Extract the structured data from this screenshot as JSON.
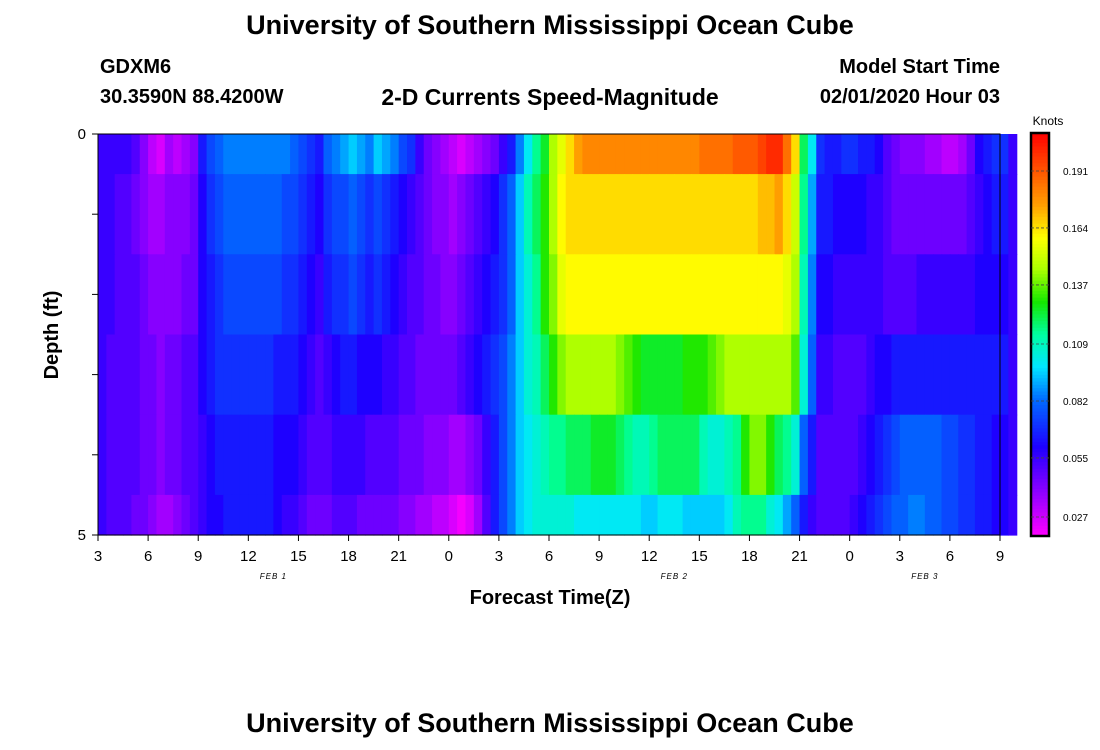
{
  "header": {
    "title": "University of Southern Mississippi Ocean Cube",
    "station_id": "GDXM6",
    "coordinates": "30.3590N 88.4200W",
    "subtitle": "2-D Currents Speed-Magnitude",
    "model_label": "Model Start Time",
    "model_time": "02/01/2020 Hour 03"
  },
  "footer": {
    "title": "University of Southern Mississippi Ocean Cube"
  },
  "chart_data": {
    "type": "heatmap",
    "xlabel": "Forecast Time(Z)",
    "ylabel": "Depth (ft)",
    "x_tick_labels": [
      "3",
      "6",
      "9",
      "12",
      "15",
      "18",
      "21",
      "0",
      "3",
      "6",
      "9",
      "12",
      "15",
      "18",
      "21",
      "0",
      "3",
      "6",
      "9"
    ],
    "x_hours": [
      0,
      54
    ],
    "y_tick_labels": [
      "0",
      "5"
    ],
    "ylim": [
      0,
      5
    ],
    "date_labels": [
      {
        "text": "FEB 1",
        "hour": 10.5
      },
      {
        "text": "FEB 2",
        "hour": 34.5
      },
      {
        "text": "FEB 3",
        "hour": 49.5
      }
    ],
    "colorbar": {
      "label": "Knots",
      "ticks": [
        0.191,
        0.164,
        0.137,
        0.109,
        0.082,
        0.055,
        0.027
      ],
      "range": [
        0.018,
        0.209
      ]
    },
    "depth_rows": 5,
    "hours_per_column": 0.5,
    "rows": [
      [
        0.055,
        0.055,
        0.055,
        0.055,
        0.05,
        0.04,
        0.03,
        0.025,
        0.035,
        0.03,
        0.035,
        0.04,
        0.065,
        0.075,
        0.08,
        0.085,
        0.085,
        0.085,
        0.085,
        0.085,
        0.085,
        0.085,
        0.085,
        0.08,
        0.075,
        0.07,
        0.065,
        0.08,
        0.085,
        0.09,
        0.095,
        0.09,
        0.085,
        0.095,
        0.09,
        0.085,
        0.075,
        0.07,
        0.055,
        0.045,
        0.04,
        0.035,
        0.03,
        0.025,
        0.03,
        0.035,
        0.04,
        0.045,
        0.055,
        0.065,
        0.085,
        0.1,
        0.115,
        0.125,
        0.145,
        0.155,
        0.165,
        0.175,
        0.18,
        0.18,
        0.18,
        0.18,
        0.18,
        0.18,
        0.18,
        0.18,
        0.18,
        0.18,
        0.18,
        0.18,
        0.18,
        0.18,
        0.185,
        0.185,
        0.185,
        0.185,
        0.19,
        0.19,
        0.19,
        0.195,
        0.2,
        0.2,
        0.185,
        0.165,
        0.12,
        0.1,
        0.07,
        0.065,
        0.065,
        0.07,
        0.07,
        0.065,
        0.065,
        0.06,
        0.05,
        0.045,
        0.04,
        0.04,
        0.04,
        0.035,
        0.035,
        0.03,
        0.03,
        0.035,
        0.045,
        0.06,
        0.065,
        0.07,
        0.07,
        0.055
      ],
      [
        0.055,
        0.055,
        0.05,
        0.05,
        0.045,
        0.04,
        0.035,
        0.035,
        0.04,
        0.04,
        0.04,
        0.045,
        0.06,
        0.07,
        0.075,
        0.08,
        0.08,
        0.08,
        0.08,
        0.08,
        0.08,
        0.08,
        0.075,
        0.075,
        0.07,
        0.065,
        0.06,
        0.07,
        0.075,
        0.075,
        0.08,
        0.075,
        0.07,
        0.075,
        0.07,
        0.065,
        0.06,
        0.055,
        0.05,
        0.045,
        0.04,
        0.04,
        0.035,
        0.04,
        0.045,
        0.05,
        0.055,
        0.06,
        0.07,
        0.08,
        0.095,
        0.11,
        0.12,
        0.13,
        0.145,
        0.16,
        0.165,
        0.165,
        0.165,
        0.165,
        0.165,
        0.165,
        0.165,
        0.165,
        0.165,
        0.165,
        0.165,
        0.165,
        0.165,
        0.165,
        0.165,
        0.165,
        0.165,
        0.165,
        0.165,
        0.165,
        0.165,
        0.165,
        0.165,
        0.17,
        0.17,
        0.175,
        0.165,
        0.15,
        0.115,
        0.09,
        0.065,
        0.065,
        0.06,
        0.06,
        0.06,
        0.06,
        0.055,
        0.055,
        0.05,
        0.045,
        0.045,
        0.045,
        0.045,
        0.045,
        0.045,
        0.045,
        0.045,
        0.045,
        0.05,
        0.055,
        0.06,
        0.065,
        0.065,
        0.055
      ],
      [
        0.055,
        0.055,
        0.05,
        0.05,
        0.05,
        0.045,
        0.04,
        0.04,
        0.04,
        0.04,
        0.045,
        0.045,
        0.06,
        0.065,
        0.07,
        0.075,
        0.075,
        0.075,
        0.075,
        0.075,
        0.075,
        0.075,
        0.07,
        0.07,
        0.065,
        0.06,
        0.055,
        0.065,
        0.07,
        0.07,
        0.075,
        0.07,
        0.065,
        0.07,
        0.065,
        0.06,
        0.055,
        0.05,
        0.05,
        0.045,
        0.045,
        0.04,
        0.04,
        0.045,
        0.05,
        0.055,
        0.06,
        0.065,
        0.07,
        0.08,
        0.095,
        0.105,
        0.115,
        0.13,
        0.14,
        0.155,
        0.16,
        0.16,
        0.16,
        0.16,
        0.16,
        0.16,
        0.16,
        0.16,
        0.16,
        0.16,
        0.16,
        0.16,
        0.16,
        0.16,
        0.16,
        0.16,
        0.16,
        0.16,
        0.16,
        0.16,
        0.16,
        0.16,
        0.16,
        0.16,
        0.16,
        0.16,
        0.155,
        0.145,
        0.11,
        0.085,
        0.06,
        0.06,
        0.055,
        0.055,
        0.055,
        0.055,
        0.055,
        0.055,
        0.05,
        0.05,
        0.05,
        0.05,
        0.055,
        0.055,
        0.055,
        0.055,
        0.055,
        0.055,
        0.055,
        0.06,
        0.06,
        0.06,
        0.06,
        0.055
      ],
      [
        0.055,
        0.05,
        0.05,
        0.05,
        0.05,
        0.045,
        0.045,
        0.04,
        0.045,
        0.045,
        0.05,
        0.05,
        0.06,
        0.065,
        0.07,
        0.07,
        0.07,
        0.07,
        0.07,
        0.07,
        0.07,
        0.065,
        0.065,
        0.065,
        0.06,
        0.055,
        0.05,
        0.055,
        0.06,
        0.065,
        0.065,
        0.06,
        0.06,
        0.06,
        0.055,
        0.055,
        0.05,
        0.05,
        0.045,
        0.045,
        0.045,
        0.045,
        0.045,
        0.05,
        0.055,
        0.06,
        0.065,
        0.07,
        0.075,
        0.085,
        0.095,
        0.105,
        0.11,
        0.12,
        0.13,
        0.14,
        0.145,
        0.145,
        0.145,
        0.145,
        0.145,
        0.145,
        0.14,
        0.135,
        0.13,
        0.125,
        0.125,
        0.125,
        0.125,
        0.125,
        0.13,
        0.13,
        0.13,
        0.135,
        0.14,
        0.145,
        0.145,
        0.145,
        0.145,
        0.145,
        0.145,
        0.145,
        0.145,
        0.135,
        0.105,
        0.08,
        0.055,
        0.055,
        0.05,
        0.05,
        0.05,
        0.05,
        0.055,
        0.06,
        0.06,
        0.065,
        0.065,
        0.065,
        0.065,
        0.065,
        0.065,
        0.065,
        0.065,
        0.065,
        0.065,
        0.065,
        0.065,
        0.065,
        0.065,
        0.055
      ],
      [
        0.055,
        0.05,
        0.05,
        0.05,
        0.05,
        0.045,
        0.045,
        0.04,
        0.045,
        0.045,
        0.05,
        0.05,
        0.055,
        0.06,
        0.065,
        0.065,
        0.065,
        0.065,
        0.065,
        0.065,
        0.065,
        0.06,
        0.06,
        0.06,
        0.055,
        0.05,
        0.05,
        0.05,
        0.055,
        0.055,
        0.055,
        0.055,
        0.05,
        0.05,
        0.05,
        0.05,
        0.045,
        0.045,
        0.045,
        0.04,
        0.04,
        0.04,
        0.035,
        0.035,
        0.04,
        0.045,
        0.055,
        0.065,
        0.075,
        0.085,
        0.095,
        0.1,
        0.105,
        0.11,
        0.115,
        0.115,
        0.12,
        0.12,
        0.12,
        0.125,
        0.125,
        0.125,
        0.12,
        0.115,
        0.11,
        0.11,
        0.115,
        0.12,
        0.12,
        0.12,
        0.12,
        0.12,
        0.11,
        0.105,
        0.105,
        0.11,
        0.115,
        0.13,
        0.14,
        0.14,
        0.13,
        0.12,
        0.115,
        0.105,
        0.08,
        0.065,
        0.05,
        0.05,
        0.05,
        0.05,
        0.05,
        0.055,
        0.06,
        0.065,
        0.07,
        0.075,
        0.08,
        0.08,
        0.08,
        0.08,
        0.08,
        0.075,
        0.075,
        0.07,
        0.07,
        0.065,
        0.065,
        0.06,
        0.06,
        0.055
      ],
      [
        0.055,
        0.05,
        0.05,
        0.05,
        0.045,
        0.045,
        0.04,
        0.035,
        0.035,
        0.04,
        0.045,
        0.05,
        0.055,
        0.06,
        0.06,
        0.065,
        0.065,
        0.065,
        0.065,
        0.065,
        0.065,
        0.06,
        0.055,
        0.055,
        0.05,
        0.045,
        0.045,
        0.045,
        0.05,
        0.05,
        0.05,
        0.045,
        0.045,
        0.045,
        0.045,
        0.045,
        0.04,
        0.04,
        0.035,
        0.035,
        0.03,
        0.03,
        0.025,
        0.02,
        0.025,
        0.035,
        0.05,
        0.065,
        0.075,
        0.085,
        0.095,
        0.1,
        0.105,
        0.105,
        0.105,
        0.105,
        0.105,
        0.1,
        0.1,
        0.1,
        0.1,
        0.1,
        0.1,
        0.1,
        0.1,
        0.095,
        0.095,
        0.1,
        0.1,
        0.1,
        0.095,
        0.095,
        0.095,
        0.095,
        0.095,
        0.1,
        0.11,
        0.115,
        0.115,
        0.115,
        0.105,
        0.1,
        0.09,
        0.08,
        0.065,
        0.055,
        0.05,
        0.05,
        0.05,
        0.05,
        0.055,
        0.06,
        0.065,
        0.07,
        0.075,
        0.08,
        0.08,
        0.085,
        0.085,
        0.08,
        0.08,
        0.075,
        0.075,
        0.07,
        0.07,
        0.065,
        0.065,
        0.06,
        0.06,
        0.055
      ]
    ]
  }
}
